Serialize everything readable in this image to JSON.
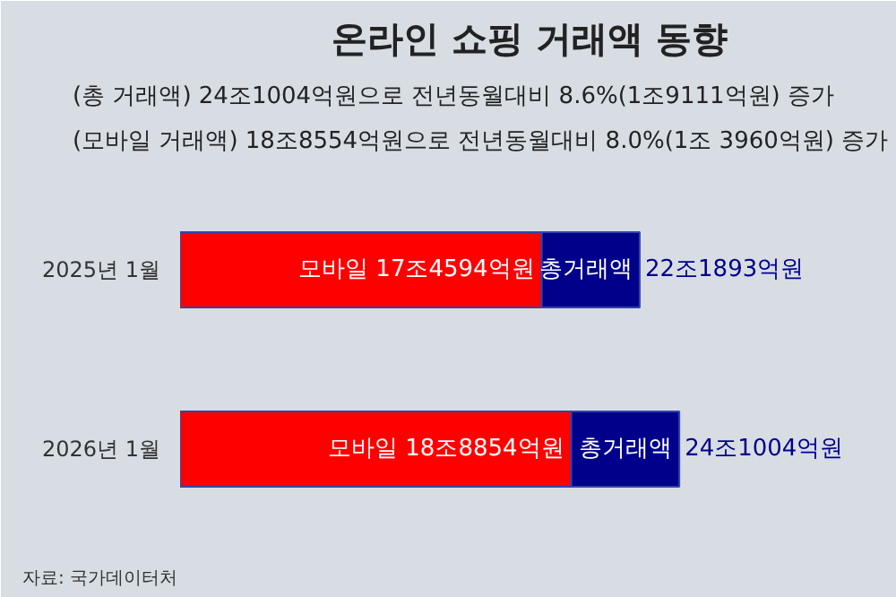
{
  "chart_data": {
    "type": "bar",
    "orientation": "horizontal",
    "stacked": true,
    "title": "온라인 쇼핑 거래액 동향",
    "categories": [
      "2025년 1월",
      "2026년 1월"
    ],
    "series": [
      {
        "color": "#ff0000",
        "values": [
          17.4594,
          18.8854
        ],
        "value_labels": [
          "모바일 17조4594억원",
          "모바일 18조8854억원"
        ]
      },
      {
        "color": "#00008b",
        "values": [
          4.7299,
          5.215
        ],
        "value_labels": [
          "총거래액",
          "총거래액"
        ]
      }
    ],
    "totals": [
      "22조1893억원",
      "24조1004억원"
    ],
    "tick_labels": "y",
    "grid": false,
    "annotations": [
      "(총 거래액) 24조1004억원으로 전년동월대비 8.6%(1조9111억원) 증가",
      "(모바일 거래액) 18조8554억원으로 전년동월대비 8.0%(1조 3960억원) 증가",
      "자료: 국가데이터처"
    ]
  }
}
